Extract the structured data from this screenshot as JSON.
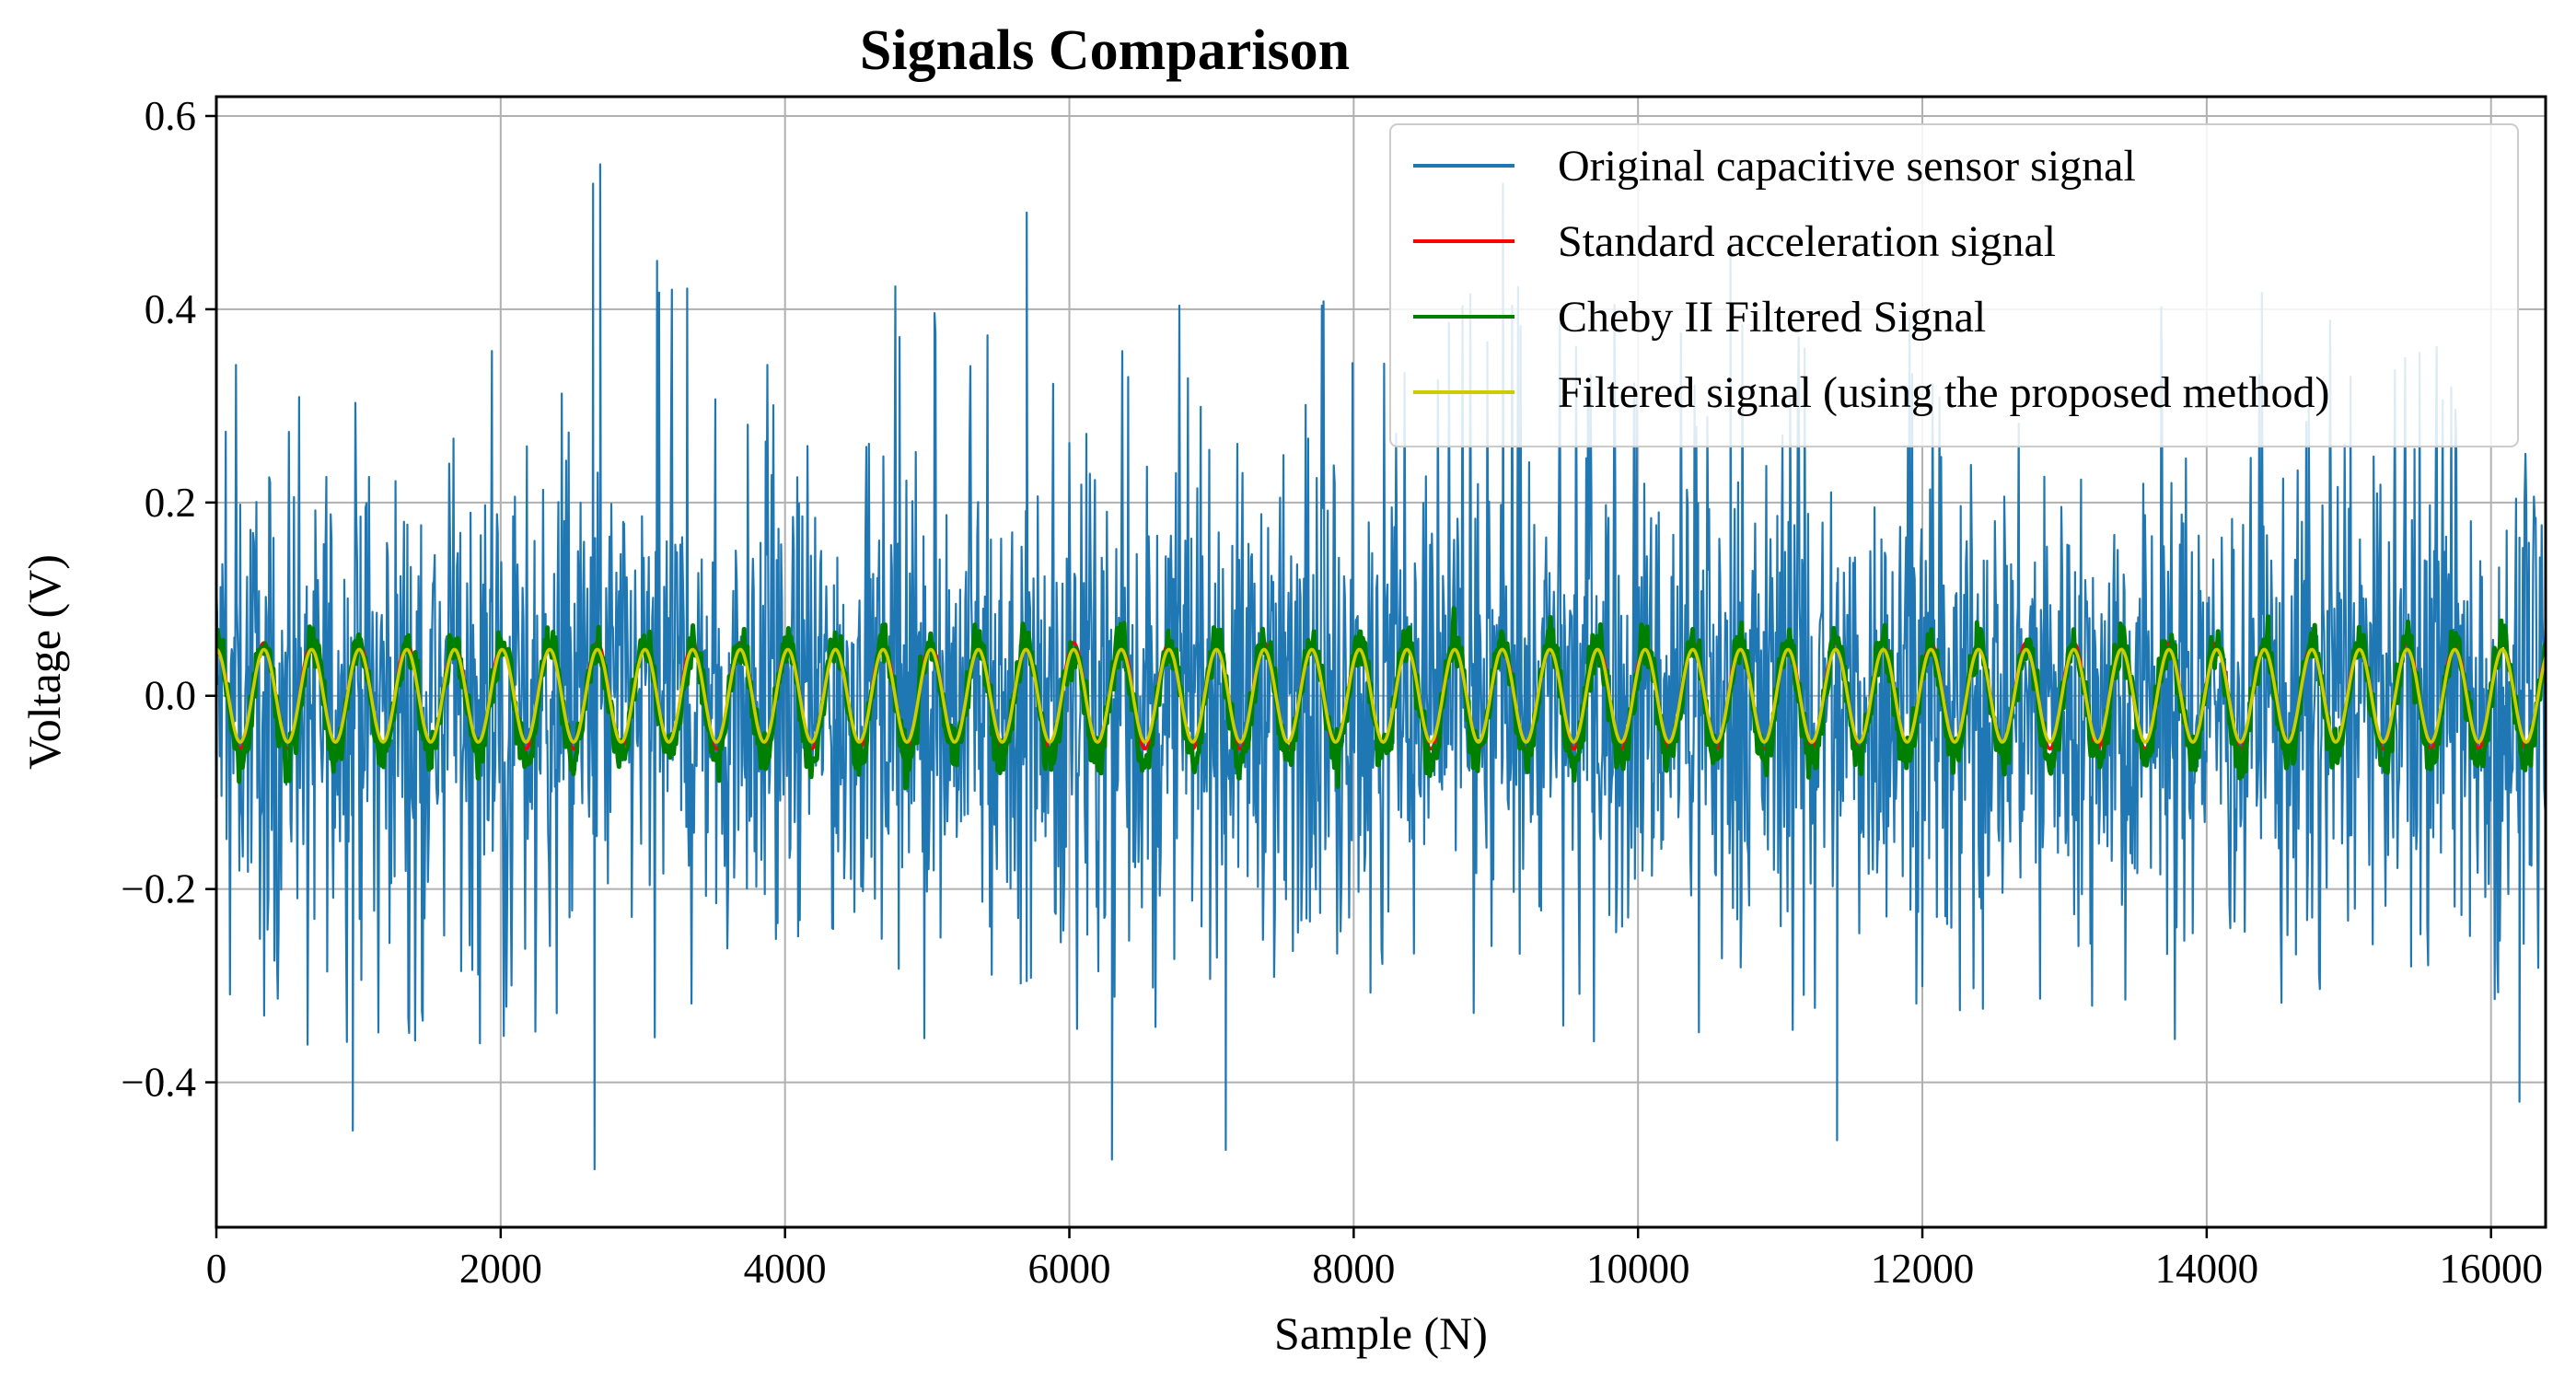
{
  "chart_data": {
    "type": "line",
    "title": "Signals Comparison",
    "xlabel": "Sample (N)",
    "ylabel": "Voltage (V)",
    "xlim": [
      0,
      16384
    ],
    "ylim": [
      -0.55,
      0.62
    ],
    "xticks": [
      0,
      2000,
      4000,
      6000,
      8000,
      10000,
      12000,
      14000,
      16000
    ],
    "xtick_labels": [
      "0",
      "2000",
      "4000",
      "6000",
      "8000",
      "10000",
      "12000",
      "14000",
      "16000"
    ],
    "yticks": [
      -0.4,
      -0.2,
      0.0,
      0.2,
      0.4,
      0.6
    ],
    "ytick_labels": [
      "−0.4",
      "−0.2",
      "0.0",
      "0.2",
      "0.4",
      "0.6"
    ],
    "grid": true,
    "legend_position": "top-right",
    "series": [
      {
        "name": "Original capacitive sensor signal",
        "color": "#1f77b4",
        "kind": "noisy",
        "description_values": {
          "center": 0.0,
          "typical_peak": 0.25,
          "max": 0.55,
          "min": -0.49
        },
        "peaks": [
          [
            2650,
            0.53
          ],
          [
            2700,
            0.55
          ],
          [
            5700,
            0.5
          ],
          [
            9050,
            0.53
          ],
          [
            3100,
            0.45
          ],
          [
            10650,
            0.47
          ]
        ],
        "troughs": [
          [
            2660,
            -0.49
          ],
          [
            6300,
            -0.48
          ],
          [
            7100,
            -0.47
          ],
          [
            11400,
            -0.46
          ],
          [
            960,
            -0.45
          ],
          [
            16200,
            -0.42
          ]
        ]
      },
      {
        "name": "Standard acceleration signal",
        "color": "#ff0000",
        "kind": "sine",
        "amplitude": 0.055,
        "period_samples": 335,
        "offset": 0.0
      },
      {
        "name": "Cheby II Filtered Signal",
        "color": "#008000",
        "kind": "sine-noisy",
        "amplitude": 0.06,
        "period_samples": 335,
        "offset": -0.005
      },
      {
        "name": "Filtered signal (using the proposed method)",
        "color": "#cccc00",
        "kind": "sine",
        "amplitude": 0.048,
        "period_samples": 335,
        "offset": 0.0
      }
    ]
  }
}
